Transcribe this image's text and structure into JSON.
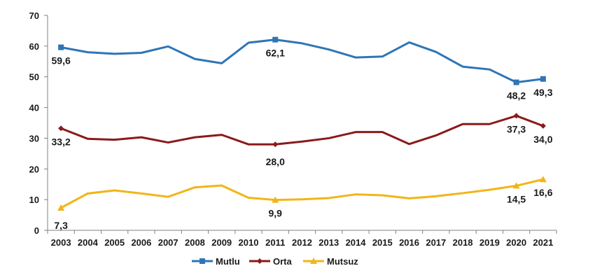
{
  "chart_data": {
    "type": "line",
    "x": [
      "2003",
      "2004",
      "2005",
      "2006",
      "2007",
      "2008",
      "2009",
      "2010",
      "2011",
      "2012",
      "2013",
      "2014",
      "2015",
      "2016",
      "2017",
      "2018",
      "2019",
      "2020",
      "2021"
    ],
    "ylim": [
      0,
      70
    ],
    "yticks": [
      0,
      10,
      20,
      30,
      40,
      50,
      60,
      70
    ],
    "grid": false,
    "legend_position": "bottom",
    "series": [
      {
        "name": "Mutlu",
        "color": "#2e75b6",
        "marker": "square",
        "values": [
          59.6,
          58.0,
          57.5,
          57.8,
          59.9,
          55.8,
          54.4,
          61.1,
          62.1,
          60.9,
          58.9,
          56.3,
          56.6,
          61.2,
          58.1,
          53.3,
          52.4,
          48.2,
          49.3
        ],
        "labels": [
          {
            "index": 0,
            "text": "59,6",
            "pos": "below"
          },
          {
            "index": 8,
            "text": "62,1",
            "pos": "below"
          },
          {
            "index": 17,
            "text": "48,2",
            "pos": "below"
          },
          {
            "index": 18,
            "text": "49,3",
            "pos": "below"
          }
        ]
      },
      {
        "name": "Orta",
        "color": "#8b1a1a",
        "marker": "diamond",
        "values": [
          33.2,
          29.8,
          29.5,
          30.3,
          28.6,
          30.3,
          31.1,
          28.0,
          28.0,
          28.9,
          30.0,
          32.0,
          32.0,
          28.1,
          30.9,
          34.6,
          34.6,
          37.3,
          34.0
        ],
        "labels": [
          {
            "index": 0,
            "text": "33,2",
            "pos": "below"
          },
          {
            "index": 8,
            "text": "28,0",
            "pos": "below2"
          },
          {
            "index": 17,
            "text": "37,3",
            "pos": "below"
          },
          {
            "index": 18,
            "text": "34,0",
            "pos": "below"
          }
        ]
      },
      {
        "name": "Mutsuz",
        "color": "#f2b516",
        "marker": "triangle",
        "values": [
          7.3,
          12.0,
          13.0,
          12.0,
          10.9,
          14.0,
          14.6,
          10.6,
          9.9,
          10.1,
          10.5,
          11.7,
          11.4,
          10.4,
          11.1,
          12.1,
          13.2,
          14.5,
          16.6
        ],
        "labels": [
          {
            "index": 0,
            "text": "7,3",
            "pos": "below2"
          },
          {
            "index": 8,
            "text": "9,9",
            "pos": "below"
          },
          {
            "index": 17,
            "text": "14,5",
            "pos": "below"
          },
          {
            "index": 18,
            "text": "16,6",
            "pos": "below"
          }
        ]
      }
    ]
  }
}
